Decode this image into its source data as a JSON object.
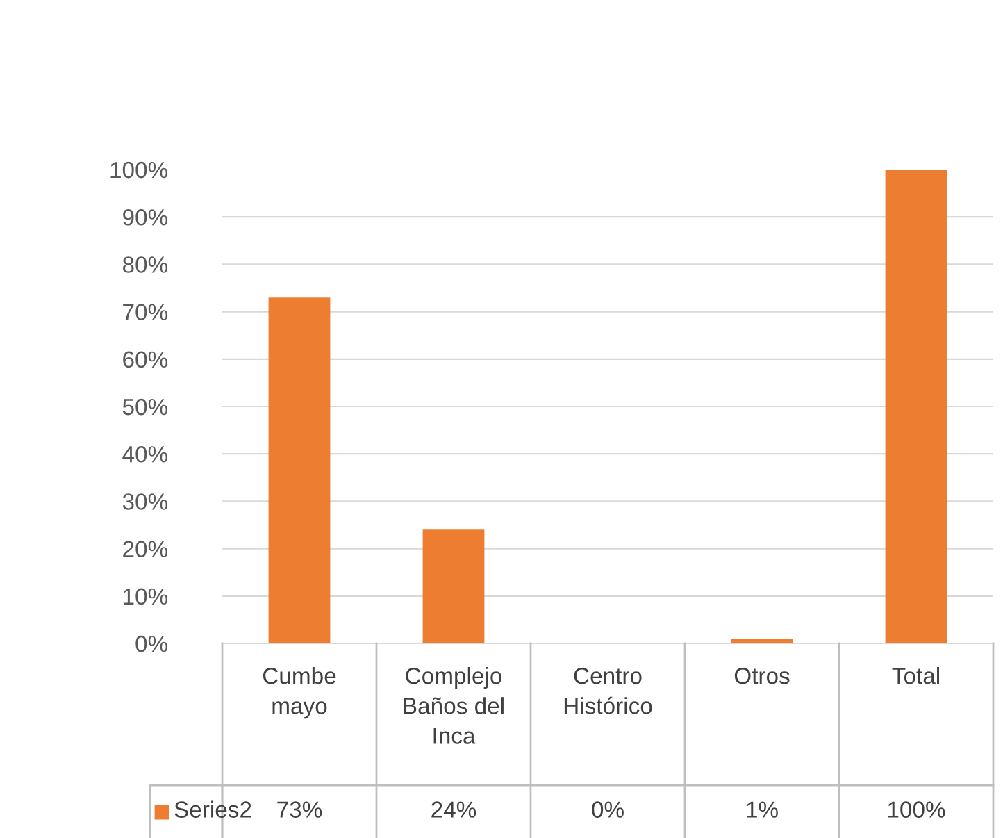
{
  "chart_data": {
    "type": "bar",
    "categories": [
      "Cumbe mayo",
      "Complejo Baños del Inca",
      "Centro Histórico",
      "Otros",
      "Total"
    ],
    "series": [
      {
        "name": "Series2",
        "color": "#ed7d31",
        "values": [
          73,
          24,
          0,
          1,
          100
        ],
        "value_labels": [
          "73%",
          "24%",
          "0%",
          "1%",
          "100%"
        ]
      }
    ],
    "ylim": [
      0,
      100
    ],
    "yticks": [
      {
        "value": 0,
        "label": "0%"
      },
      {
        "value": 10,
        "label": "10%"
      },
      {
        "value": 20,
        "label": "20%"
      },
      {
        "value": 30,
        "label": "30%"
      },
      {
        "value": 40,
        "label": "40%"
      },
      {
        "value": 50,
        "label": "50%"
      },
      {
        "value": 60,
        "label": "60%"
      },
      {
        "value": 70,
        "label": "70%"
      },
      {
        "value": 80,
        "label": "80%"
      },
      {
        "value": 90,
        "label": "90%"
      },
      {
        "value": 100,
        "label": "100%"
      }
    ],
    "grid": "y"
  }
}
